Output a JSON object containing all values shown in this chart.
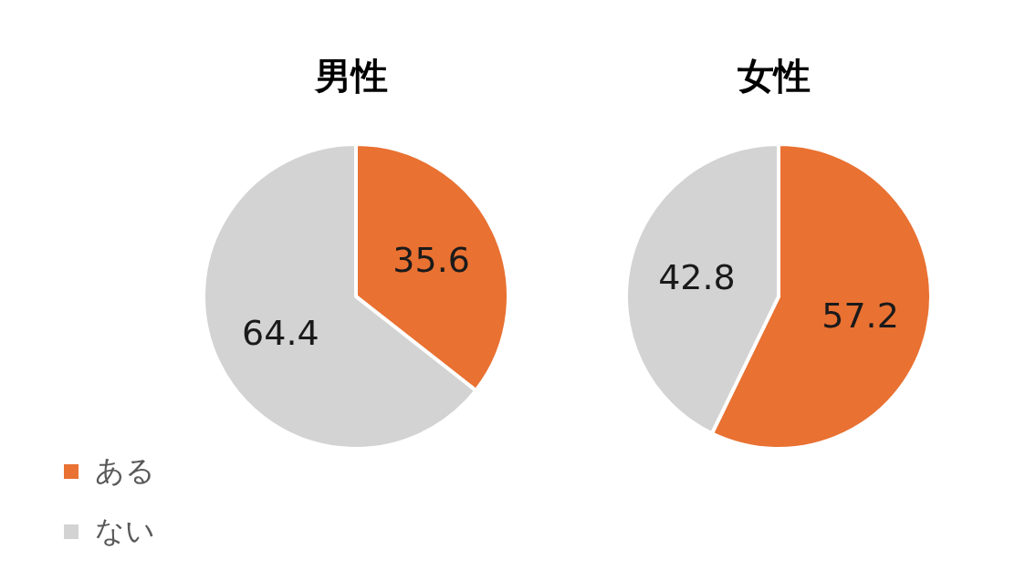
{
  "chart_data": [
    {
      "type": "pie",
      "title": "男性",
      "categories": [
        "ある",
        "ない"
      ],
      "values": [
        35.6,
        64.4
      ],
      "colors": [
        "#e97132",
        "#d3d3d3"
      ],
      "data_labels": true,
      "legend": "bottom left"
    },
    {
      "type": "pie",
      "title": "女性",
      "categories": [
        null,
        null
      ],
      "values": [
        57.2,
        42.8
      ],
      "colors": [
        "#e97132",
        "#d3d3d3"
      ],
      "data_labels": true
    }
  ]
}
